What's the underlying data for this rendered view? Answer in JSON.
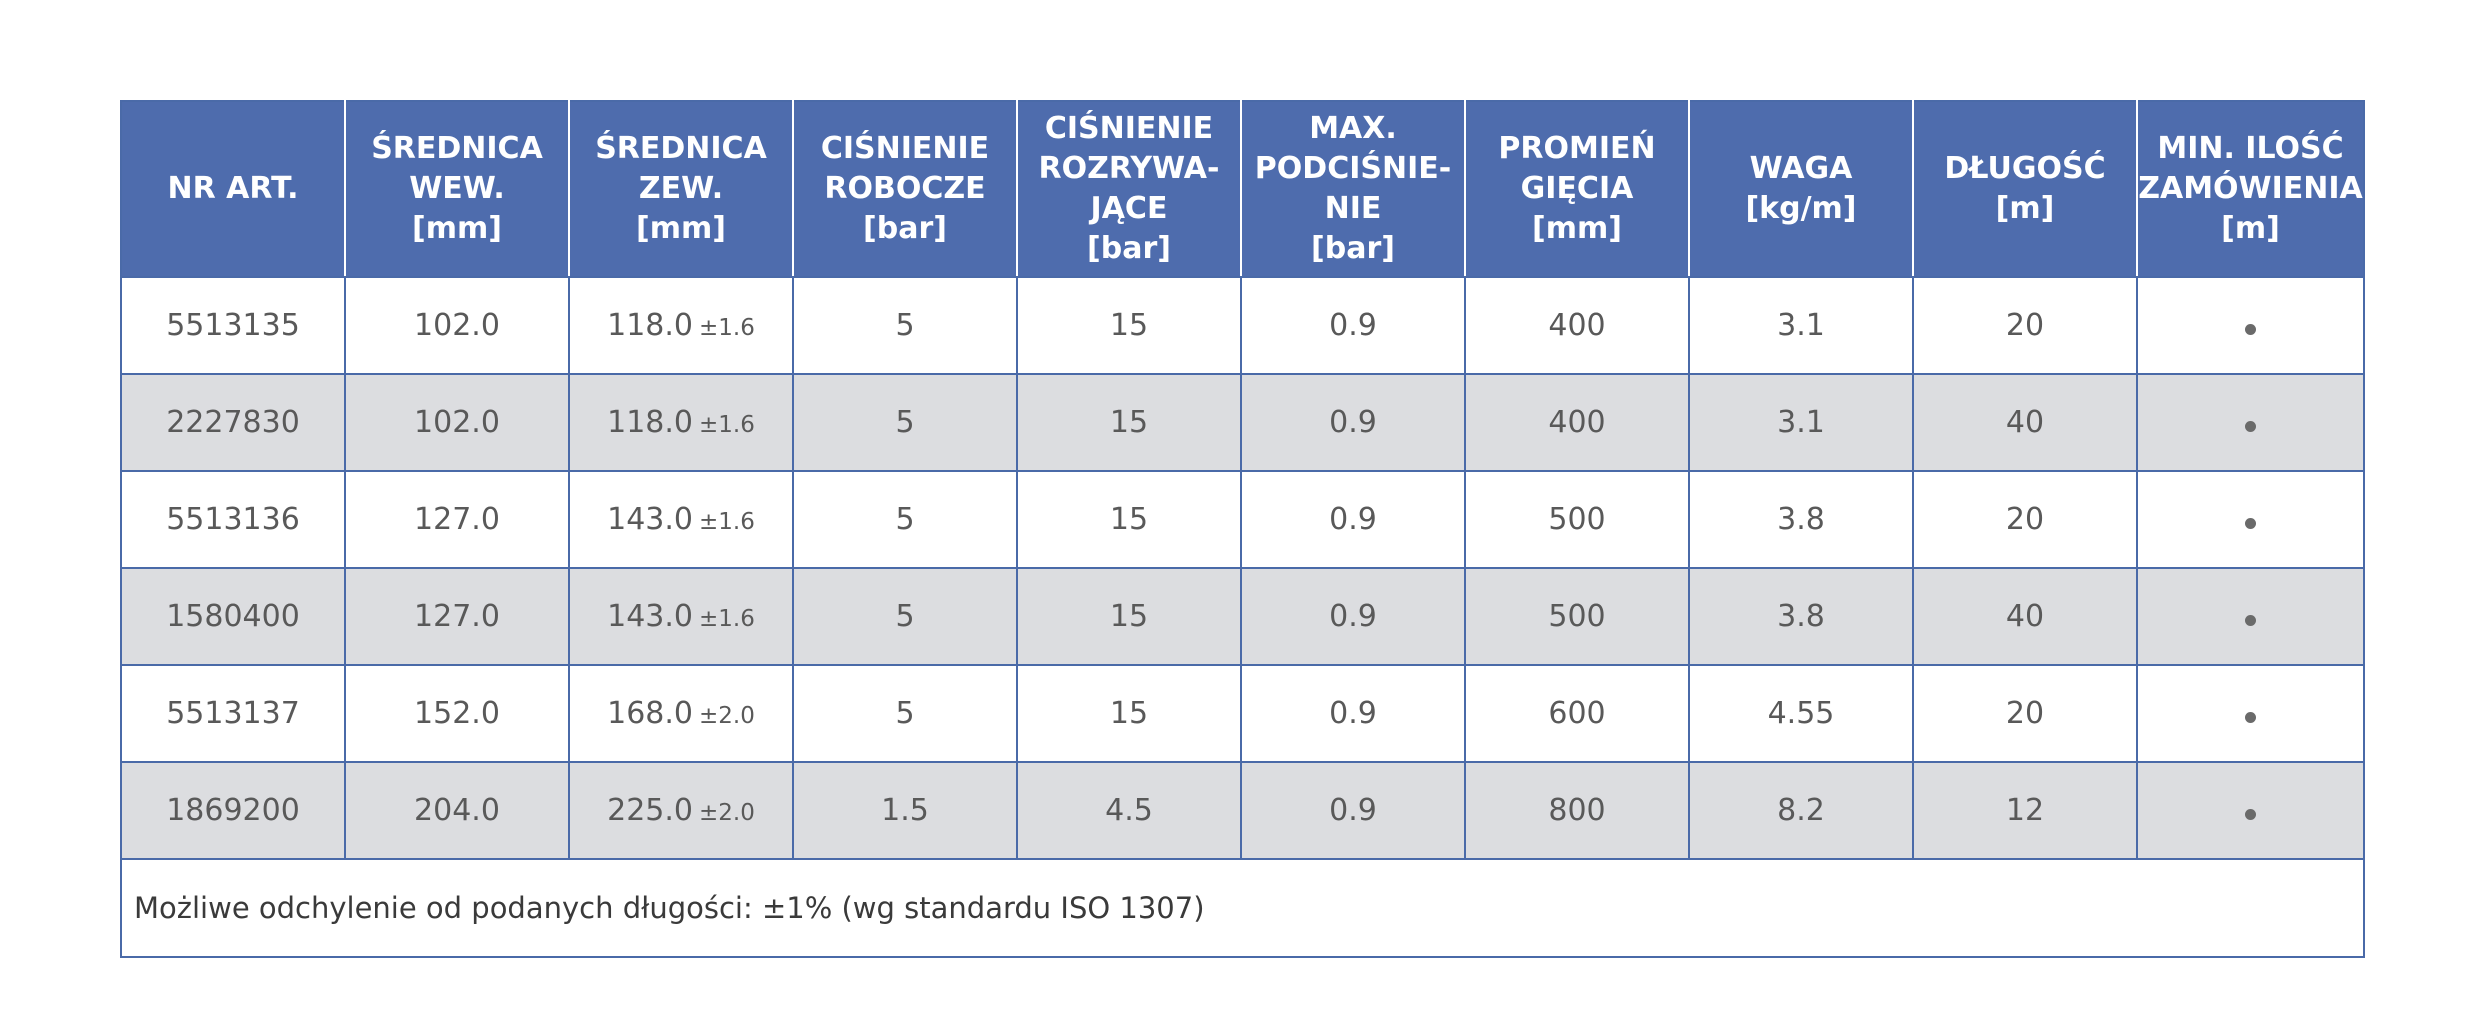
{
  "colors": {
    "header_bg": "#4e6cad",
    "border": "#4a6aa8",
    "stripe": "#dcdde0",
    "text": "#595959"
  },
  "header": [
    [
      "NR ART."
    ],
    [
      "ŚREDNICA",
      "WEW.",
      "[mm]"
    ],
    [
      "ŚREDNICA",
      "ZEW.",
      "[mm]"
    ],
    [
      "CIŚNIENIE",
      "ROBOCZE",
      "[bar]"
    ],
    [
      "CIŚNIENIE",
      "ROZRYWA-",
      "JĄCE",
      "[bar]"
    ],
    [
      "MAX.",
      "PODCIŚNIE-",
      "NIE",
      "[bar]"
    ],
    [
      "PROMIEŃ",
      "GIĘCIA",
      "[mm]"
    ],
    [
      "WAGA",
      "[kg/m]"
    ],
    [
      "DŁUGOŚĆ",
      "[m]"
    ],
    [
      "MIN. ILOŚĆ",
      "ZAMÓWIENIA",
      "[m]"
    ]
  ],
  "rows": [
    {
      "nr": "5513135",
      "wew": "102.0",
      "zew": "118.0",
      "zew_tol": "±1.6",
      "robocze": "5",
      "rozrywajace": "15",
      "podcisnienie": "0.9",
      "promien": "400",
      "waga": "3.1",
      "dlugosc": "20"
    },
    {
      "nr": "2227830",
      "wew": "102.0",
      "zew": "118.0",
      "zew_tol": "±1.6",
      "robocze": "5",
      "rozrywajace": "15",
      "podcisnienie": "0.9",
      "promien": "400",
      "waga": "3.1",
      "dlugosc": "40"
    },
    {
      "nr": "5513136",
      "wew": "127.0",
      "zew": "143.0",
      "zew_tol": "±1.6",
      "robocze": "5",
      "rozrywajace": "15",
      "podcisnienie": "0.9",
      "promien": "500",
      "waga": "3.8",
      "dlugosc": "20"
    },
    {
      "nr": "1580400",
      "wew": "127.0",
      "zew": "143.0",
      "zew_tol": "±1.6",
      "robocze": "5",
      "rozrywajace": "15",
      "podcisnienie": "0.9",
      "promien": "500",
      "waga": "3.8",
      "dlugosc": "40"
    },
    {
      "nr": "5513137",
      "wew": "152.0",
      "zew": "168.0",
      "zew_tol": "±2.0",
      "robocze": "5",
      "rozrywajace": "15",
      "podcisnienie": "0.9",
      "promien": "600",
      "waga": "4.55",
      "dlugosc": "20"
    },
    {
      "nr": "1869200",
      "wew": "204.0",
      "zew": "225.0",
      "zew_tol": "±2.0",
      "robocze": "1.5",
      "rozrywajace": "4.5",
      "podcisnienie": "0.9",
      "promien": "800",
      "waga": "8.2",
      "dlugosc": "12"
    }
  ],
  "footnote": "Możliwe odchylenie od podanych długości: ±1% (wg standardu ISO 1307)"
}
